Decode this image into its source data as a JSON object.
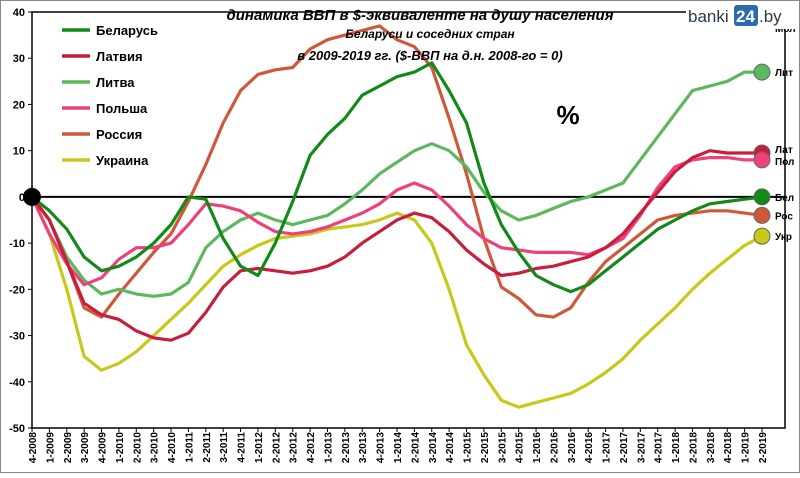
{
  "chart_data": {
    "type": "line",
    "title": "динамика ВВП в $-эквиваленте на душу населения",
    "subtitle": "Беларуси и соседних стран",
    "subtitle2": "в 2009-2019 гг. ($-ВВП на д.н. 2008-го = 0)",
    "unit_label": "%",
    "ylim": [
      -50,
      40
    ],
    "yticks": [
      40,
      30,
      20,
      10,
      0,
      -10,
      -20,
      -30,
      -40,
      -50
    ],
    "grid": false,
    "legend_position": "top-left",
    "x": [
      "4-2008",
      "1-2009",
      "2-2009",
      "3-2009",
      "4-2009",
      "1-2010",
      "2-2010",
      "3-2010",
      "4-2010",
      "1-2011",
      "2-2011",
      "3-2011",
      "4-2011",
      "1-2012",
      "2-2012",
      "3-2012",
      "4-2012",
      "1-2013",
      "2-2013",
      "3-2013",
      "4-2013",
      "1-2014",
      "2-2014",
      "3-2014",
      "4-2014",
      "1-2015",
      "2-2015",
      "3-2015",
      "4-2015",
      "1-2016",
      "2-2016",
      "3-2016",
      "4-2016",
      "1-2017",
      "2-2017",
      "3-2017",
      "4-2017",
      "1-2018",
      "2-2018",
      "3-2018",
      "4-2018",
      "1-2019",
      "2-2019"
    ],
    "series": [
      {
        "name": "Беларусь",
        "end_label": "Бел",
        "color": "#118a18",
        "values": [
          0,
          -3,
          -7,
          -13,
          -16,
          -15,
          -13,
          -10,
          -6,
          0,
          -0.5,
          -9,
          -15,
          -17,
          -10,
          -1,
          9,
          13.5,
          17,
          22,
          24,
          26,
          27,
          29,
          23,
          16,
          3,
          -6,
          -12,
          -17,
          -19,
          -20.5,
          -19,
          -16,
          -13,
          -10,
          -7,
          -5,
          -3,
          -1.5,
          -1,
          -0.5,
          0
        ]
      },
      {
        "name": "Латвия",
        "end_label": "Лат",
        "color": "#c91d3c",
        "values": [
          0,
          -5,
          -14,
          -23,
          -25.5,
          -26.5,
          -29,
          -30.5,
          -31,
          -29.5,
          -25,
          -19.5,
          -16,
          -15.5,
          -16,
          -16.5,
          -16,
          -15,
          -13,
          -10,
          -7.5,
          -5,
          -3.5,
          -4.5,
          -7.5,
          -11.5,
          -14.5,
          -17,
          -16.5,
          -15.5,
          -15,
          -14,
          -13,
          -11,
          -8,
          -3.5,
          1,
          5.5,
          8.5,
          10,
          9.5,
          9.5,
          9.5
        ]
      },
      {
        "name": "Литва",
        "end_label": "Лит",
        "color": "#5cb85c",
        "values": [
          0,
          -5,
          -13,
          -18,
          -21,
          -20,
          -21,
          -21.5,
          -21,
          -18.5,
          -11,
          -7.5,
          -5,
          -3.5,
          -5,
          -6,
          -5,
          -4,
          -1.5,
          1.5,
          5,
          7.5,
          10,
          11.5,
          10,
          6.5,
          1,
          -3,
          -5,
          -4,
          -2.5,
          -1,
          0,
          1.5,
          3,
          8,
          13,
          18,
          23,
          24,
          25,
          27,
          27
        ]
      },
      {
        "name": "Польша",
        "end_label": "Пол",
        "color": "#f0407a",
        "values": [
          0,
          -8,
          -14.5,
          -19,
          -17.5,
          -13.5,
          -11,
          -11,
          -10,
          -6,
          -1.5,
          -2,
          -3,
          -5.5,
          -7.5,
          -8,
          -7.5,
          -6.5,
          -5,
          -3.5,
          -1.5,
          1.5,
          3,
          1.5,
          -2,
          -6,
          -9,
          -11,
          -11.5,
          -12,
          -12,
          -12,
          -12.5,
          -11,
          -9,
          -4,
          2,
          6.5,
          8,
          8.5,
          8.5,
          8,
          8
        ]
      },
      {
        "name": "Россия",
        "end_label": "Рос",
        "color": "#d0583a",
        "values": [
          0,
          -5,
          -14,
          -24,
          -26,
          -21,
          -16.5,
          -12,
          -8,
          -1,
          7,
          16,
          23,
          26.5,
          27.5,
          28,
          32,
          34,
          35,
          36,
          37,
          34,
          32.5,
          28,
          17,
          5,
          -9,
          -19.5,
          -22,
          -25.5,
          -26,
          -24,
          -18.5,
          -14,
          -11,
          -8,
          -5,
          -4,
          -3.5,
          -3,
          -3,
          -3.5,
          -4
        ]
      },
      {
        "name": "Украина",
        "end_label": "Укр",
        "color": "#c8c818",
        "values": [
          0,
          -8,
          -20,
          -34.5,
          -37.5,
          -36,
          -33.5,
          -30,
          -26.5,
          -23,
          -19,
          -15,
          -12.5,
          -10.5,
          -9,
          -8.5,
          -8,
          -7,
          -6.5,
          -6,
          -5,
          -3.5,
          -5,
          -10,
          -20,
          -32,
          -38.5,
          -44,
          -45.5,
          -44.5,
          -43.5,
          -42.5,
          -40.5,
          -38,
          -35,
          -31,
          -27.5,
          -24,
          -20,
          -16.5,
          -13.5,
          -10.5,
          -8.5
        ]
      }
    ],
    "partial_top_label": "Мол"
  },
  "logo": {
    "text": "banki",
    "number": "24",
    "suffix": ".by"
  }
}
